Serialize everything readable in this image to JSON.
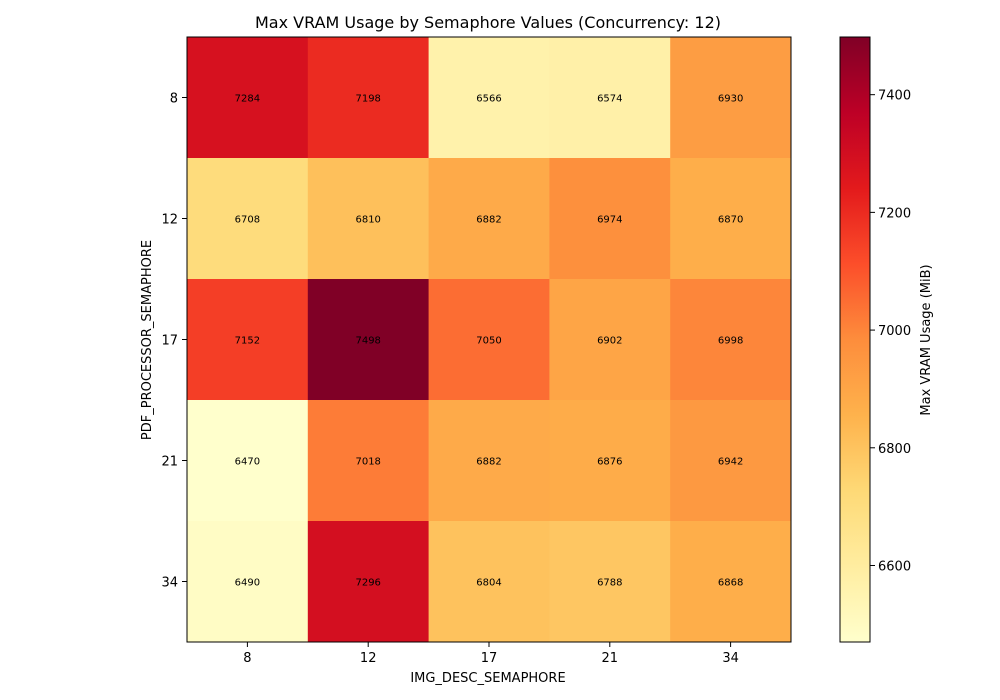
{
  "chart_data": {
    "type": "heatmap",
    "title": "Max VRAM Usage by Semaphore Values (Concurrency: 12)",
    "xlabel": "IMG_DESC_SEMAPHORE",
    "ylabel": "PDF_PROCESSOR_SEMAPHORE",
    "x_categories": [
      "8",
      "12",
      "17",
      "21",
      "34"
    ],
    "y_categories": [
      "8",
      "12",
      "17",
      "21",
      "34"
    ],
    "values": [
      [
        7284,
        7198,
        6566,
        6574,
        6930
      ],
      [
        6708,
        6810,
        6882,
        6974,
        6870
      ],
      [
        7152,
        7498,
        7050,
        6902,
        6998
      ],
      [
        6470,
        7018,
        6882,
        6876,
        6942
      ],
      [
        6490,
        7296,
        6804,
        6788,
        6868
      ]
    ],
    "colormap": "YlOrRd",
    "color_range": [
      6470,
      7498
    ],
    "colorbar": {
      "label": "Max VRAM Usage (MiB)",
      "ticks": [
        6600,
        6800,
        7000,
        7200,
        7400
      ]
    }
  }
}
